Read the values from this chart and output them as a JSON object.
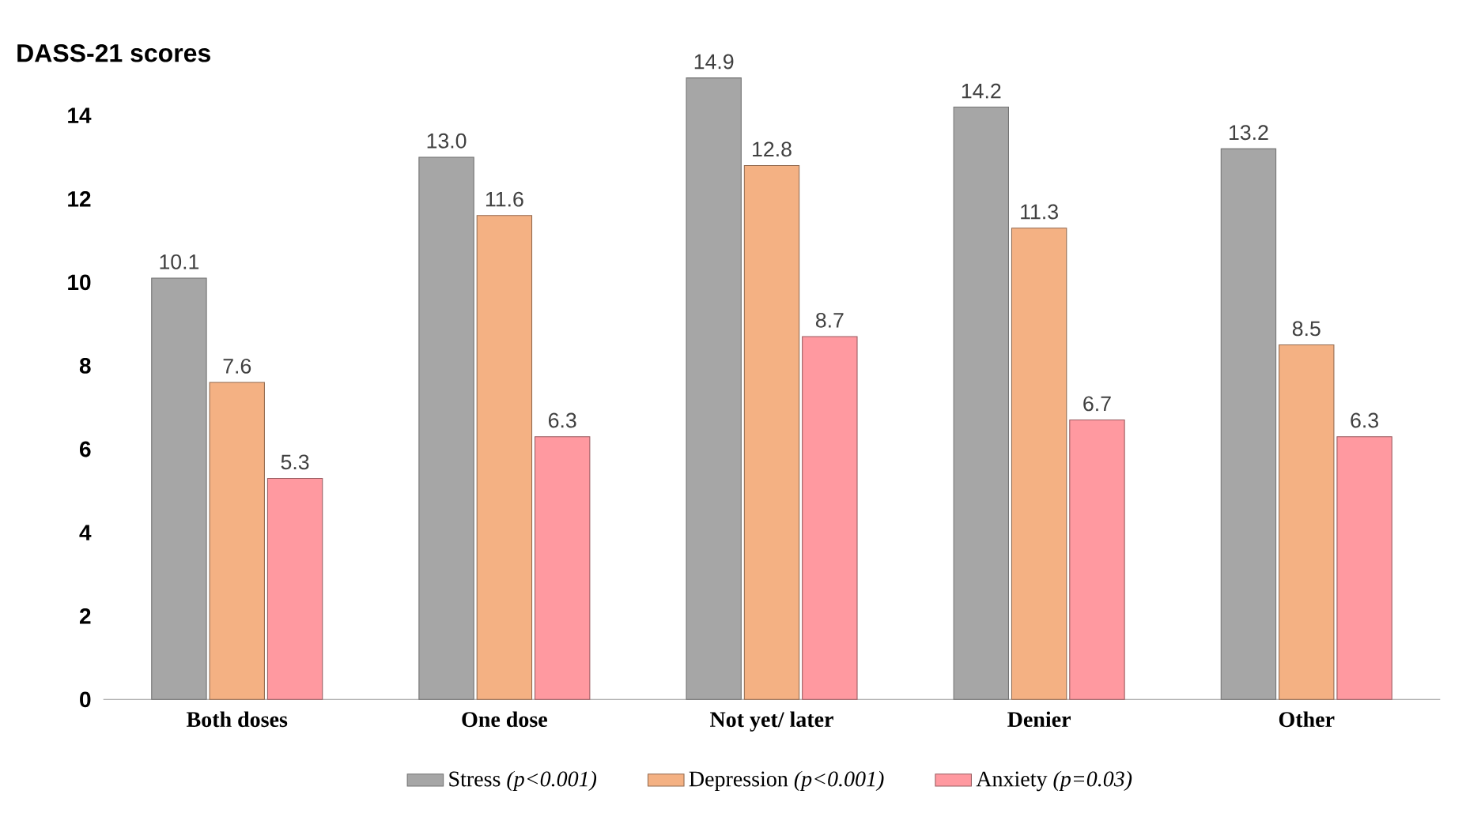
{
  "chart_data": {
    "type": "bar",
    "ylabel": "DASS-21 scores",
    "categories": [
      "Both doses",
      "One dose",
      "Not yet/ later",
      "Denier",
      "Other"
    ],
    "series": [
      {
        "name": "Stress *(p<0.001)*",
        "color": "#a6a6a6",
        "values": [
          10.1,
          13.0,
          14.9,
          14.2,
          13.2
        ],
        "value_labels": [
          "10.1",
          "13.0",
          "14.9",
          "14.2",
          "13.2"
        ]
      },
      {
        "name": "Depression *(p<0.001)*",
        "color": "#f4b183",
        "values": [
          7.6,
          11.6,
          12.8,
          11.3,
          8.5
        ],
        "value_labels": [
          "7.6",
          "11.6",
          "12.8",
          "11.3",
          "8.5"
        ]
      },
      {
        "name": "Anxiety *(p=0.03)*",
        "color": "#ff99a0",
        "values": [
          5.3,
          6.3,
          8.7,
          6.7,
          6.3
        ],
        "value_labels": [
          "5.3",
          "6.3",
          "8.7",
          "6.7",
          "6.3"
        ]
      }
    ],
    "ylim": [
      0,
      15
    ],
    "yticks": [
      0,
      2,
      4,
      6,
      8,
      10,
      12,
      14
    ],
    "grid": false,
    "legend": "bottom"
  }
}
